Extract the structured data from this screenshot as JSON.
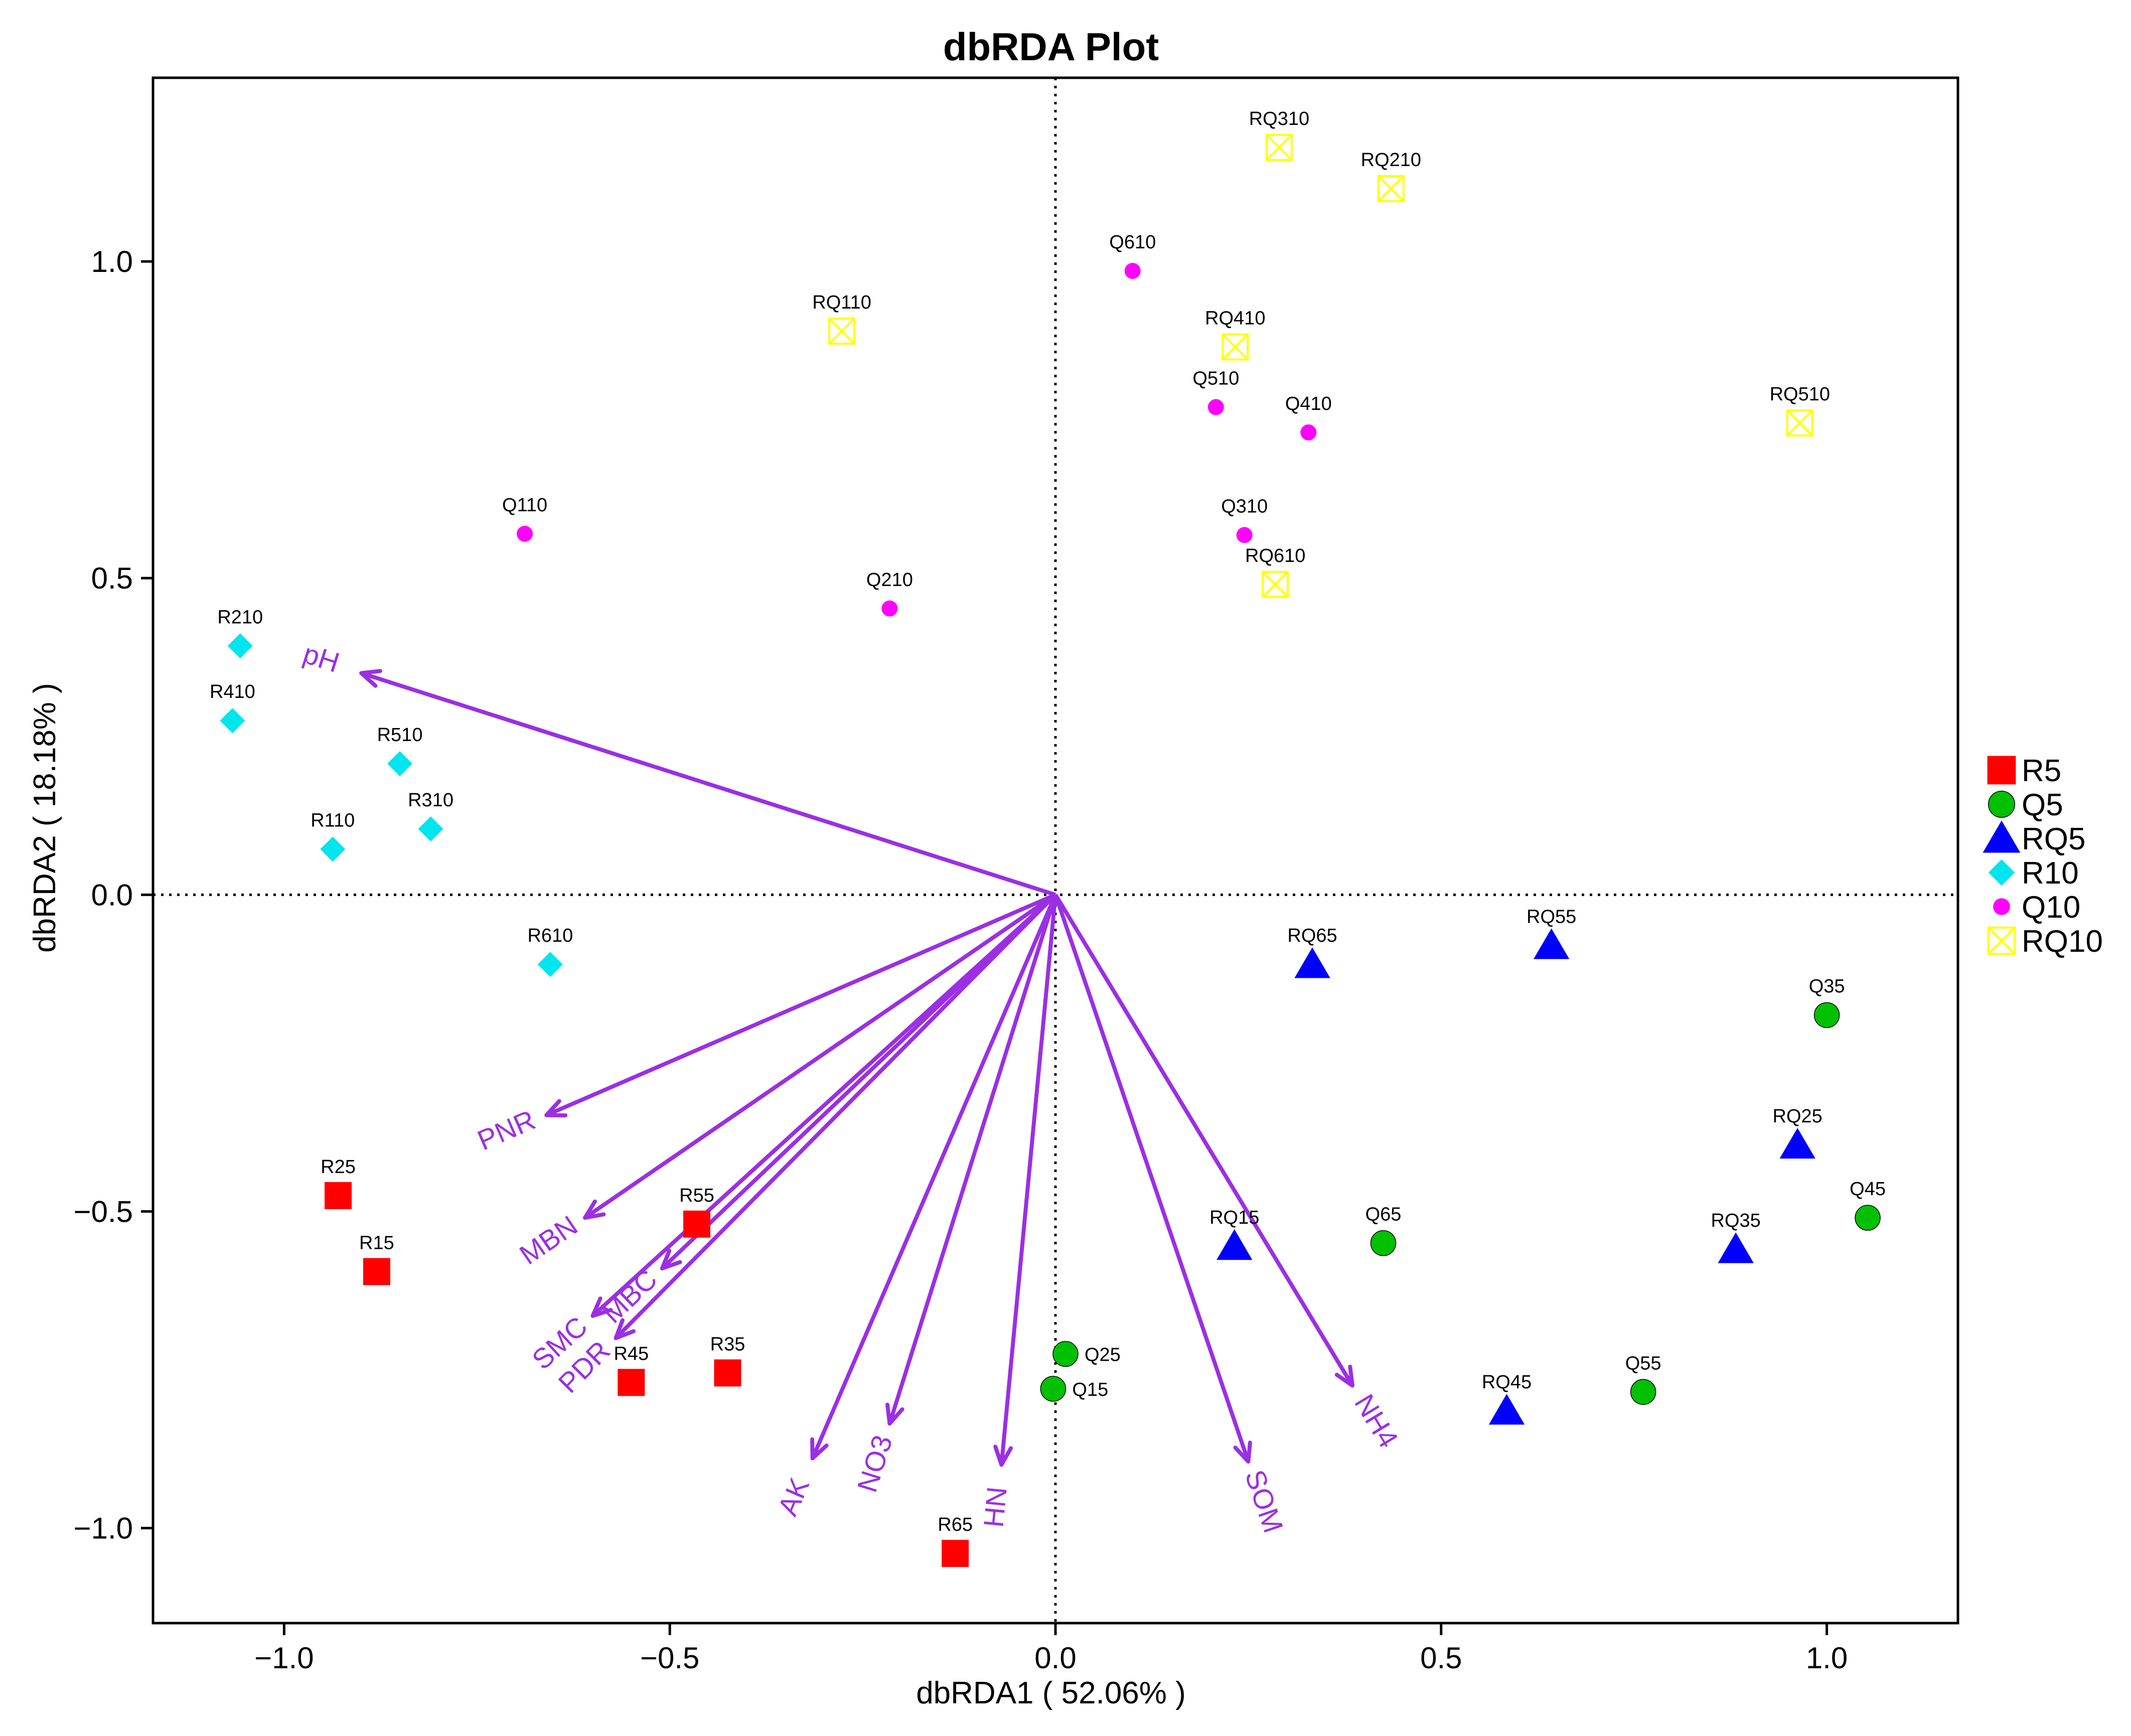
{
  "chart_data": {
    "type": "scatter",
    "title": "dbRDA Plot",
    "xlabel": "dbRDA1 ( 52.06% )",
    "ylabel": "dbRDA2 ( 18.18% )",
    "xlim": [
      -1.17,
      1.17
    ],
    "ylim": [
      -1.15,
      1.29
    ],
    "xticks": [
      -1.0,
      -0.5,
      0.0,
      0.5,
      1.0
    ],
    "xtick_labels": [
      "−1.0",
      "−0.5",
      "0.0",
      "0.5",
      "1.0"
    ],
    "yticks": [
      -1.0,
      -0.5,
      0.0,
      0.5,
      1.0
    ],
    "ytick_labels": [
      "−1.0",
      "−0.5",
      "0.0",
      "0.5",
      "1.0"
    ],
    "legend_position": "right",
    "arrow_color": "#9b2fe3",
    "series": [
      {
        "name": "R5",
        "marker": "square",
        "color": "#ff0000",
        "points": [
          {
            "label": "R15",
            "x": -0.88,
            "y": -0.595
          },
          {
            "label": "R25",
            "x": -0.93,
            "y": -0.475
          },
          {
            "label": "R35",
            "x": -0.425,
            "y": -0.755
          },
          {
            "label": "R45",
            "x": -0.55,
            "y": -0.77
          },
          {
            "label": "R55",
            "x": -0.465,
            "y": -0.52
          },
          {
            "label": "R65",
            "x": -0.13,
            "y": -1.04
          }
        ]
      },
      {
        "name": "Q5",
        "marker": "circle",
        "color": "#00c000",
        "points": [
          {
            "label": "Q15",
            "x": -0.003,
            "y": -0.78
          },
          {
            "label": "Q25",
            "x": 0.013,
            "y": -0.725
          },
          {
            "label": "Q35",
            "x": 1.0,
            "y": -0.19
          },
          {
            "label": "Q45",
            "x": 1.053,
            "y": -0.51
          },
          {
            "label": "Q55",
            "x": 0.762,
            "y": -0.785
          },
          {
            "label": "Q65",
            "x": 0.425,
            "y": -0.55
          }
        ]
      },
      {
        "name": "RQ5",
        "marker": "triangle",
        "color": "#0000ff",
        "points": [
          {
            "label": "RQ15",
            "x": 0.232,
            "y": -0.555
          },
          {
            "label": "RQ25",
            "x": 0.962,
            "y": -0.395
          },
          {
            "label": "RQ35",
            "x": 0.882,
            "y": -0.56
          },
          {
            "label": "RQ45",
            "x": 0.585,
            "y": -0.815
          },
          {
            "label": "RQ55",
            "x": 0.643,
            "y": -0.08
          },
          {
            "label": "RQ65",
            "x": 0.333,
            "y": -0.11
          }
        ]
      },
      {
        "name": "R10",
        "marker": "diamond",
        "color": "#00e5ee",
        "points": [
          {
            "label": "R110",
            "x": -0.937,
            "y": 0.072
          },
          {
            "label": "R210",
            "x": -1.057,
            "y": 0.393
          },
          {
            "label": "R310",
            "x": -0.81,
            "y": 0.104
          },
          {
            "label": "R410",
            "x": -1.067,
            "y": 0.275
          },
          {
            "label": "R510",
            "x": -0.85,
            "y": 0.207
          },
          {
            "label": "R610",
            "x": -0.655,
            "y": -0.11
          }
        ]
      },
      {
        "name": "Q10",
        "marker": "circle-small",
        "color": "#ff00ff",
        "points": [
          {
            "label": "Q110",
            "x": -0.688,
            "y": 0.57
          },
          {
            "label": "Q210",
            "x": -0.215,
            "y": 0.452
          },
          {
            "label": "Q310",
            "x": 0.245,
            "y": 0.568
          },
          {
            "label": "Q410",
            "x": 0.328,
            "y": 0.73
          },
          {
            "label": "Q510",
            "x": 0.208,
            "y": 0.77
          },
          {
            "label": "Q610",
            "x": 0.1,
            "y": 0.985
          }
        ]
      },
      {
        "name": "RQ10",
        "marker": "boxed-x",
        "color": "#ffff00",
        "points": [
          {
            "label": "RQ110",
            "x": -0.277,
            "y": 0.89
          },
          {
            "label": "RQ210",
            "x": 0.435,
            "y": 1.115
          },
          {
            "label": "RQ310",
            "x": 0.29,
            "y": 1.18
          },
          {
            "label": "RQ410",
            "x": 0.233,
            "y": 0.865
          },
          {
            "label": "RQ510",
            "x": 0.965,
            "y": 0.745
          },
          {
            "label": "RQ610",
            "x": 0.285,
            "y": 0.49
          }
        ]
      }
    ],
    "arrows": [
      {
        "label": "pH",
        "x": -0.9,
        "y": 0.35
      },
      {
        "label": "PNR",
        "x": -0.66,
        "y": -0.348
      },
      {
        "label": "MBN",
        "x": -0.61,
        "y": -0.51
      },
      {
        "label": "SMC",
        "x": -0.6,
        "y": -0.665
      },
      {
        "label": "MBC",
        "x": -0.51,
        "y": -0.59
      },
      {
        "label": "PDR",
        "x": -0.57,
        "y": -0.7
      },
      {
        "label": "AK",
        "x": -0.315,
        "y": -0.89
      },
      {
        "label": "NO3",
        "x": -0.215,
        "y": -0.835
      },
      {
        "label": "HN",
        "x": -0.07,
        "y": -0.9
      },
      {
        "label": "SOM",
        "x": 0.25,
        "y": -0.895
      },
      {
        "label": "NH4",
        "x": 0.385,
        "y": -0.775
      }
    ]
  }
}
